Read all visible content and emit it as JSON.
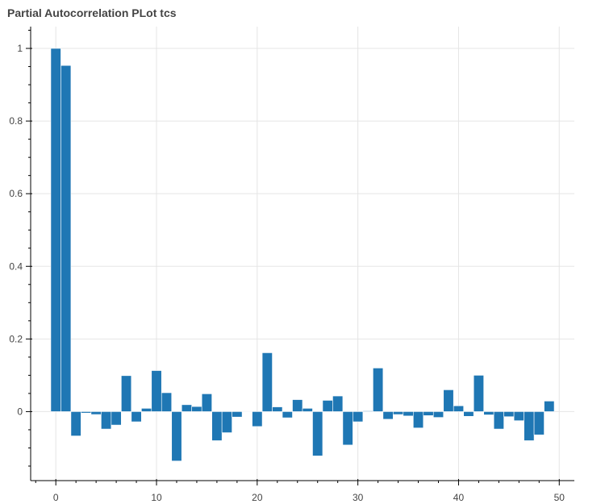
{
  "chart_data": {
    "type": "bar",
    "title": "Partial Autocorrelation PLot tcs",
    "xlabel": "",
    "ylabel": "",
    "xlim": [
      -2.5,
      51.5
    ],
    "ylim": [
      -0.19,
      1.06
    ],
    "x_ticks": [
      0,
      10,
      20,
      30,
      40,
      50
    ],
    "x_tick_labels": [
      "0",
      "10",
      "20",
      "30",
      "40",
      "50"
    ],
    "y_ticks": [
      0,
      0.2,
      0.4,
      0.6,
      0.8,
      1
    ],
    "y_tick_labels": [
      "0",
      "0.2",
      "0.4",
      "0.6",
      "0.8",
      "1"
    ],
    "grid": true,
    "bar_color": "#1f77b4",
    "x": [
      0,
      1,
      2,
      3,
      4,
      5,
      6,
      7,
      8,
      9,
      10,
      11,
      12,
      13,
      14,
      15,
      16,
      17,
      18,
      19,
      20,
      21,
      22,
      23,
      24,
      25,
      26,
      27,
      28,
      29,
      30,
      31,
      32,
      33,
      34,
      35,
      36,
      37,
      38,
      39,
      40,
      41,
      42,
      43,
      44,
      45,
      46,
      47,
      48,
      49
    ],
    "values": [
      1.0,
      0.953,
      -0.067,
      -0.004,
      -0.008,
      -0.048,
      -0.037,
      0.099,
      -0.028,
      0.009,
      0.113,
      0.052,
      -0.136,
      0.019,
      0.014,
      0.049,
      -0.08,
      -0.058,
      -0.015,
      0.0,
      -0.041,
      0.162,
      0.013,
      -0.017,
      0.033,
      0.009,
      -0.122,
      0.031,
      0.043,
      -0.092,
      -0.028,
      0.002,
      0.12,
      -0.021,
      -0.008,
      -0.012,
      -0.045,
      -0.011,
      -0.016,
      0.06,
      0.016,
      -0.013,
      0.1,
      -0.009,
      -0.048,
      -0.014,
      -0.025,
      -0.08,
      -0.064,
      0.029
    ]
  }
}
